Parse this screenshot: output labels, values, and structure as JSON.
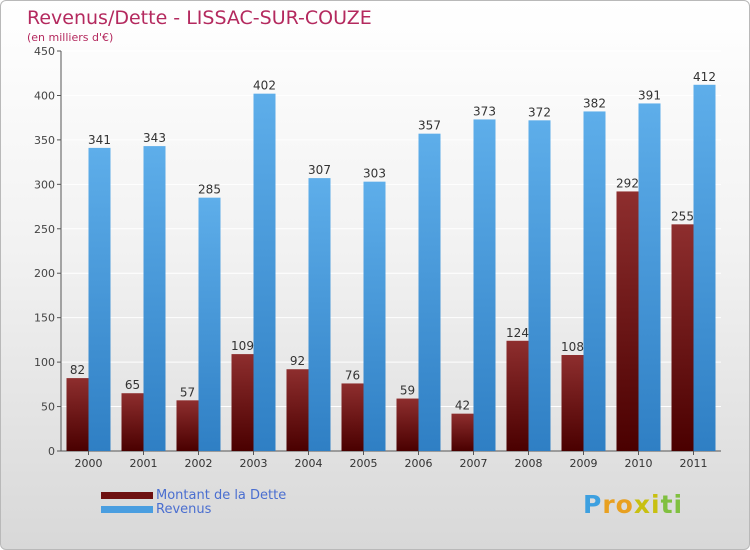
{
  "header": {
    "title": "Revenus/Dette - LISSAC-SUR-COUZE",
    "subtitle": "(en milliers d'€)"
  },
  "legend": {
    "items": [
      {
        "label": "Montant de la Dette",
        "color": "#6e1010"
      },
      {
        "label": "Revenus",
        "color": "#4a9ee0"
      }
    ]
  },
  "logo": {
    "letters": [
      "P",
      "r",
      "o",
      "x",
      "i",
      "t",
      "i"
    ],
    "colors": [
      "#3da0e0",
      "#e8a020",
      "#e8a020",
      "#c8c010",
      "#c8c010",
      "#80c040",
      "#80c040"
    ]
  },
  "chart_data": {
    "type": "bar",
    "categories": [
      "2000",
      "2001",
      "2002",
      "2003",
      "2004",
      "2005",
      "2006",
      "2007",
      "2008",
      "2009",
      "2010",
      "2011"
    ],
    "series": [
      {
        "name": "Montant de la Dette",
        "color": "#6e1010",
        "values": [
          82,
          65,
          57,
          109,
          92,
          76,
          59,
          42,
          124,
          108,
          292,
          255
        ]
      },
      {
        "name": "Revenus",
        "color": "#4a9ee0",
        "values": [
          341,
          343,
          285,
          402,
          307,
          303,
          357,
          373,
          372,
          382,
          391,
          412
        ]
      }
    ],
    "ylim": [
      0,
      450
    ],
    "yticks": [
      0,
      50,
      100,
      150,
      200,
      250,
      300,
      350,
      400,
      450
    ],
    "grid": true,
    "legend_position": "bottom-left"
  }
}
